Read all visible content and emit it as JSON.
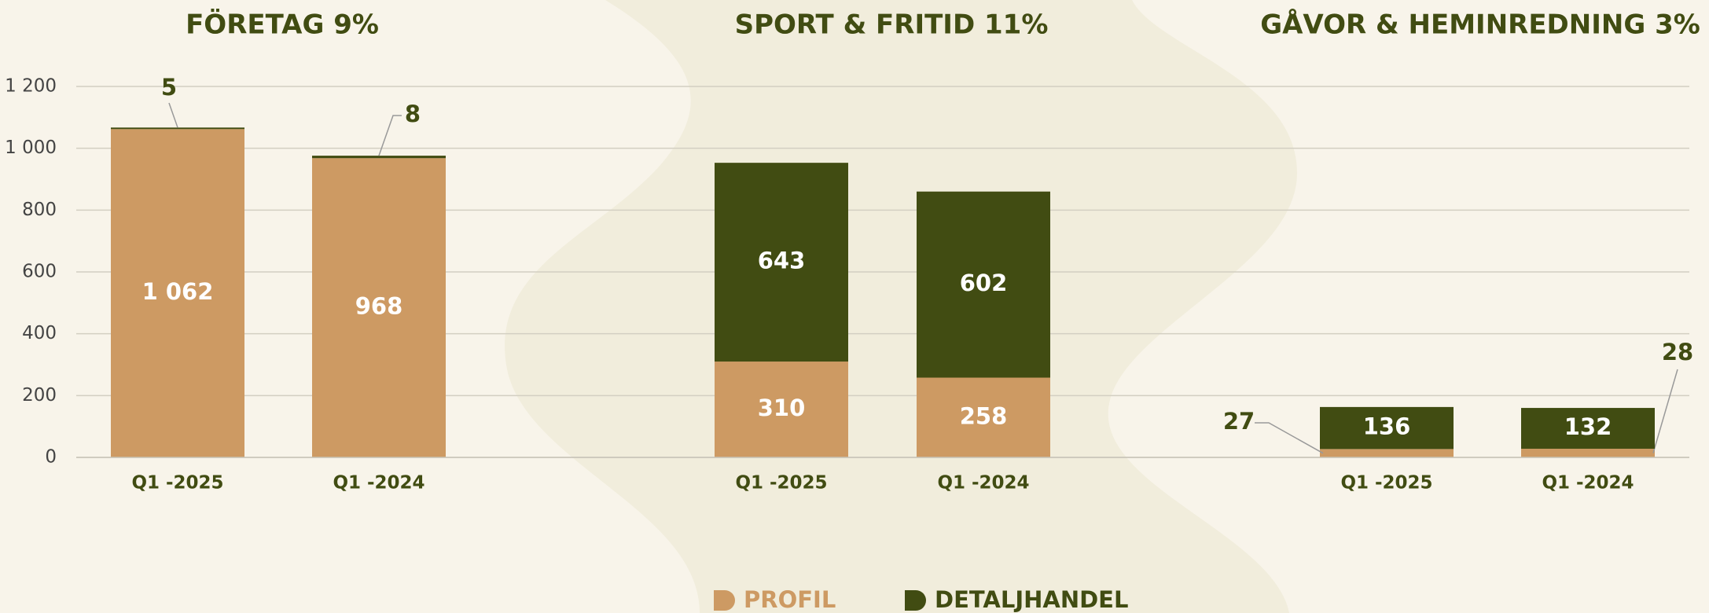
{
  "chart_data": {
    "type": "bar",
    "stacked": true,
    "groups": [
      {
        "title": "FÖRETAG 9%",
        "categories": [
          "Q1 -2025",
          "Q1 -2024"
        ]
      },
      {
        "title": "SPORT & FRITID 11%",
        "categories": [
          "Q1 -2025",
          "Q1 -2024"
        ]
      },
      {
        "title": "GÅVOR & HEMINREDNING 3%",
        "categories": [
          "Q1 -2025",
          "Q1 -2024"
        ]
      }
    ],
    "series": [
      {
        "name": "PROFIL",
        "color": "#cd9a63",
        "values": [
          1062,
          968,
          310,
          258,
          27,
          28
        ],
        "value_labels": [
          "1 062",
          "968",
          "310",
          "258",
          "27",
          "28"
        ]
      },
      {
        "name": "DETALJHANDEL",
        "color": "#414c12",
        "values": [
          5,
          8,
          643,
          602,
          136,
          132
        ]
      }
    ],
    "ylim": [
      0,
      1200
    ],
    "yticks": [
      0,
      200,
      400,
      600,
      800,
      {
        "value": 1000,
        "label": "1 000"
      },
      {
        "value": 1200,
        "label": "1 200"
      }
    ],
    "grid": true
  }
}
